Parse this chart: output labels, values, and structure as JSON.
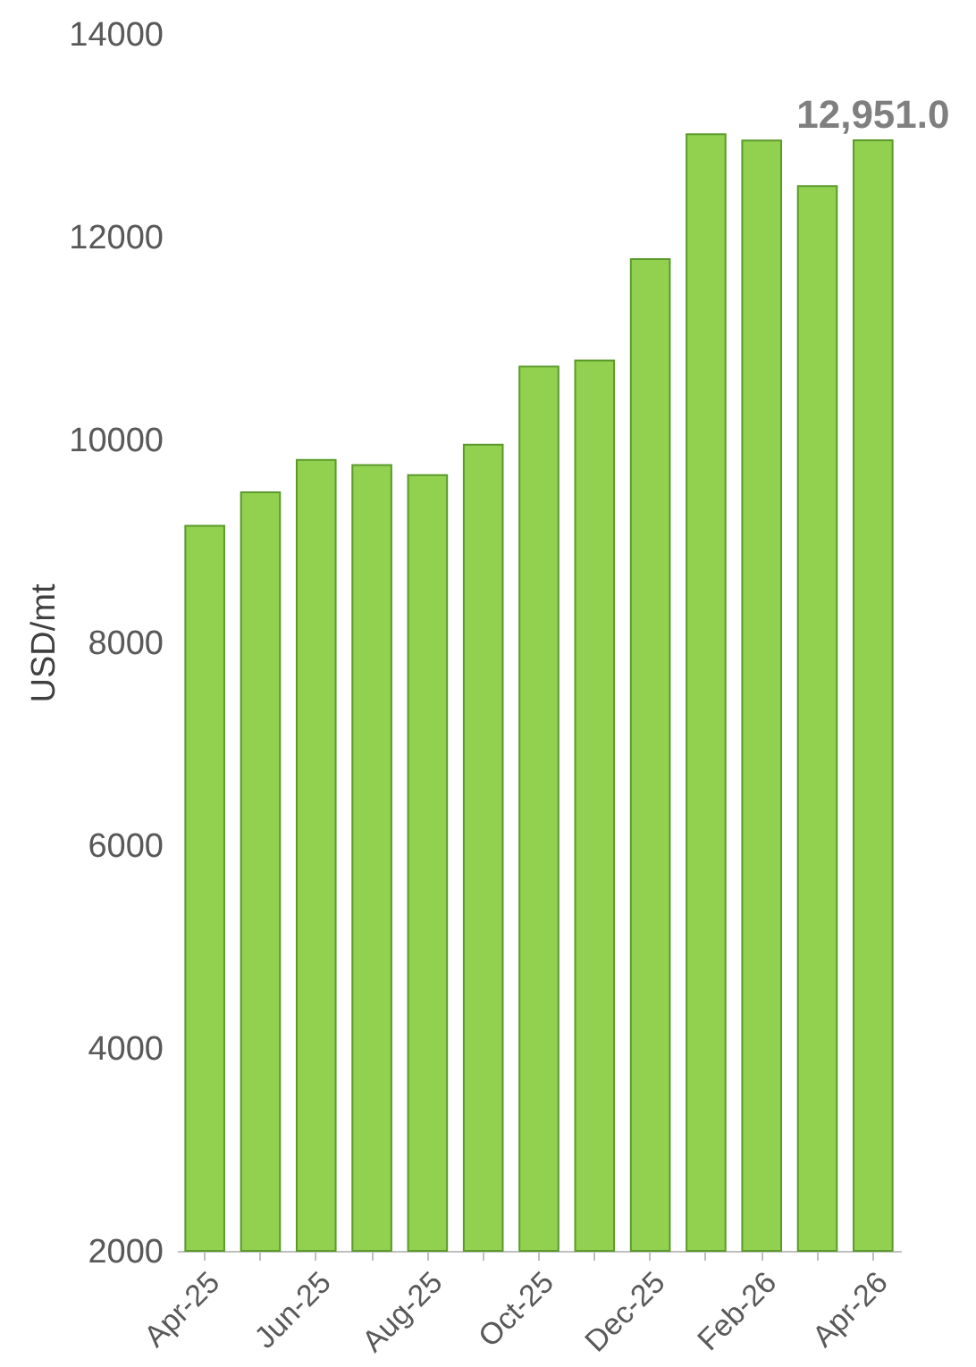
{
  "chart_data": {
    "type": "bar",
    "ylabel": "USD/mt",
    "categories": [
      "Apr-25",
      null,
      "Jun-25",
      null,
      "Aug-25",
      null,
      "Oct-25",
      null,
      "Dec-25",
      null,
      "Feb-26",
      null,
      "Apr-26"
    ],
    "values": [
      9150,
      9480,
      9800,
      9750,
      9650,
      9950,
      10720,
      10780,
      11780,
      13010,
      12950,
      12500,
      12951
    ],
    "value_labels": [
      null,
      null,
      null,
      null,
      null,
      null,
      null,
      null,
      null,
      null,
      null,
      null,
      "12,951.0"
    ],
    "color": "#92d050",
    "ylim": [
      2000,
      14000
    ],
    "yticks": [
      2000,
      4000,
      6000,
      8000,
      10000,
      12000,
      14000
    ],
    "grid": false
  }
}
